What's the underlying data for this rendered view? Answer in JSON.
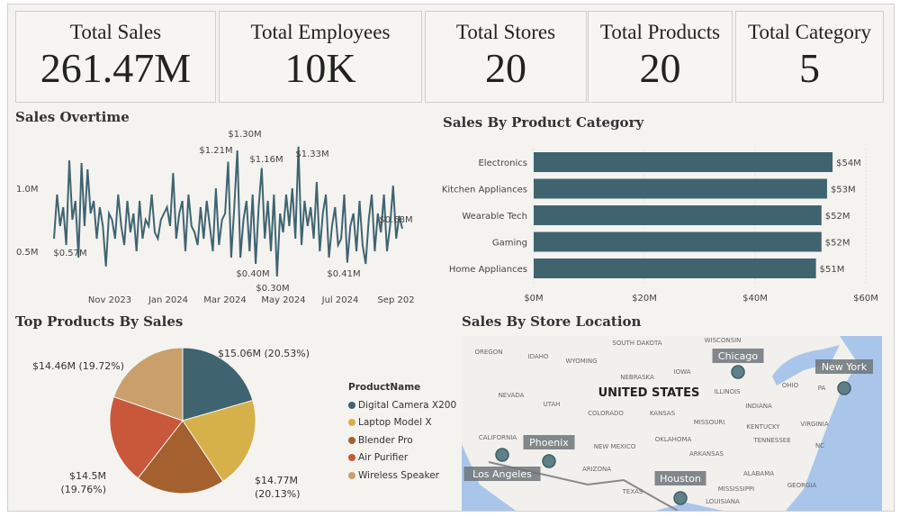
{
  "kpis": [
    {
      "label": "Total Sales",
      "value": "261.47M"
    },
    {
      "label": "Total Employees",
      "value": "10K"
    },
    {
      "label": "Total Stores",
      "value": "20"
    },
    {
      "label": "Total Products",
      "value": "20"
    },
    {
      "label": "Total Category",
      "value": "5"
    }
  ],
  "colors": {
    "primary": "#3f6470",
    "pie": [
      "#3f6470",
      "#d6b14a",
      "#a4602e",
      "#c9573a",
      "#c9a06b"
    ]
  },
  "chart_data": [
    {
      "type": "line",
      "title": "Sales Overtime",
      "yticks": [
        "0.5M",
        "1.0M"
      ],
      "ytick_values": [
        0.5,
        1.0
      ],
      "xticks": [
        "Nov 2023",
        "Jan 2024",
        "Mar 2024",
        "May 2024",
        "Jul 2024",
        "Sep 202"
      ],
      "unit": "M",
      "values": [
        0.6,
        0.95,
        0.7,
        0.85,
        0.55,
        1.22,
        0.75,
        0.9,
        0.45,
        1.2,
        0.7,
        1.15,
        0.8,
        0.9,
        0.6,
        0.85,
        0.7,
        0.38,
        0.8,
        0.75,
        0.6,
        0.95,
        0.7,
        0.55,
        0.9,
        0.65,
        0.8,
        0.5,
        0.9,
        0.6,
        0.75,
        0.7,
        0.95,
        0.65,
        0.6,
        0.75,
        0.8,
        0.85,
        0.7,
        1.12,
        0.6,
        0.8,
        0.9,
        0.5,
        0.95,
        0.7,
        0.65,
        0.55,
        0.85,
        0.6,
        0.9,
        0.7,
        0.5,
        1.0,
        0.55,
        0.75,
        0.8,
        1.21,
        0.45,
        0.85,
        1.3,
        0.45,
        0.75,
        0.9,
        0.5,
        0.95,
        0.4,
        0.85,
        1.16,
        0.6,
        0.9,
        0.5,
        0.95,
        0.3,
        0.8,
        0.65,
        0.95,
        0.7,
        1.0,
        0.6,
        1.33,
        0.55,
        0.9,
        0.7,
        0.85,
        0.6,
        1.05,
        0.5,
        0.8,
        0.95,
        0.45,
        0.7,
        0.85,
        0.55,
        0.6,
        0.95,
        0.41,
        0.7,
        0.8,
        0.5,
        0.9,
        0.55,
        0.4,
        0.75,
        0.95,
        0.5,
        0.8,
        0.65,
        0.95,
        0.5,
        0.7,
        1.02,
        0.6,
        0.78,
        0.68
      ],
      "annotations": [
        "$1.30M",
        "$1.21M",
        "$1.16M",
        "$1.33M",
        "$0.57M",
        "$0.40M",
        "$0.30M",
        "$0.41M",
        "$0.68M"
      ]
    },
    {
      "type": "bar",
      "title": "Sales By Product Category",
      "orientation": "horizontal",
      "categories": [
        "Electronics",
        "Kitchen Appliances",
        "Wearable Tech",
        "Gaming",
        "Home Appliances"
      ],
      "values": [
        54,
        53,
        52,
        52,
        51
      ],
      "labels": [
        "$54M",
        "$53M",
        "$52M",
        "$52M",
        "$51M"
      ],
      "xticks": [
        "$0M",
        "$20M",
        "$40M",
        "$60M"
      ],
      "xlim": [
        0,
        60
      ]
    },
    {
      "type": "pie",
      "title": "Top Products By Sales",
      "legend_title": "ProductName",
      "legend": "right",
      "categories": [
        "Digital Camera X200",
        "Laptop Model X",
        "Blender Pro",
        "Air Purifier",
        "Wireless Speaker"
      ],
      "values": [
        15.06,
        14.77,
        14.57,
        14.5,
        14.46
      ],
      "labels": [
        "$15.06M (20.53%)",
        "$14.77M (20.13%)",
        "",
        "$14.5M (19.76%)",
        "$14.46M (19.72%)"
      ]
    }
  ],
  "map": {
    "title": "Sales By Store Location",
    "country": "UNITED STATES",
    "states": [
      "OREGON",
      "IDAHO",
      "WYOMING",
      "SOUTH DAKOTA",
      "WISCONSIN",
      "IOWA",
      "NEBRASKA",
      "NEVADA",
      "UTAH",
      "COLORADO",
      "KANSAS",
      "ILLINOIS",
      "INDIANA",
      "OHIO",
      "PA",
      "MISSOURI",
      "KENTUCKY",
      "VIRGINIA",
      "CALIFORNIA",
      "ARIZONA",
      "NEW MEXICO",
      "OKLAHOMA",
      "ARKANSAS",
      "TENNESSEE",
      "NC",
      "TEXAS",
      "MISSISSIPPI",
      "ALABAMA",
      "GEORGIA",
      "LOUISIANA"
    ],
    "cities": [
      "Chicago",
      "New York",
      "Phoenix",
      "Los Angeles",
      "Houston"
    ]
  }
}
